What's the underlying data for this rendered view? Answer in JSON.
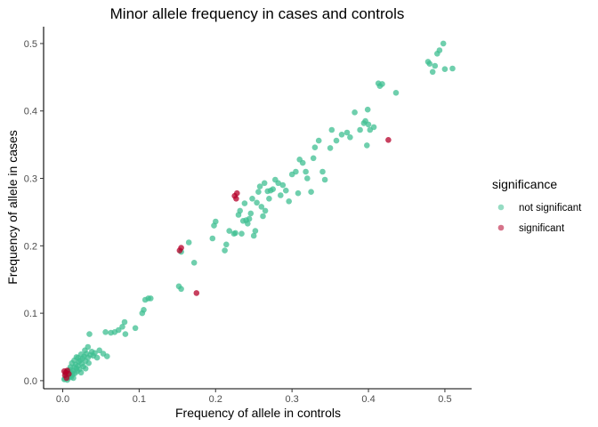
{
  "chart_data": {
    "type": "scatter",
    "title": "Minor allele frequency in cases and controls",
    "xlabel": "Frequency of allele in controls",
    "ylabel": "Frequency of allele in cases",
    "xlim": [
      -0.025,
      0.535
    ],
    "ylim": [
      -0.012,
      0.525
    ],
    "x_ticks": [
      0.0,
      0.1,
      0.2,
      0.3,
      0.4,
      0.5
    ],
    "x_tick_labels": [
      "0.0",
      "0.1",
      "0.2",
      "0.3",
      "0.4",
      "0.5"
    ],
    "y_ticks": [
      0.0,
      0.1,
      0.2,
      0.3,
      0.4,
      0.5
    ],
    "y_tick_labels": [
      "0.0",
      "0.1",
      "0.2",
      "0.3",
      "0.4",
      "0.5"
    ],
    "grid": false,
    "legend": {
      "title": "significance",
      "position": "right",
      "entries": [
        {
          "label": "not significant",
          "color": "#3fbf91"
        },
        {
          "label": "significant",
          "color": "#b5002a"
        }
      ]
    },
    "series": [
      {
        "name": "not significant",
        "color": "#3fbf91",
        "points": [
          [
            0.003,
            0.003
          ],
          [
            0.005,
            0.006
          ],
          [
            0.007,
            0.004
          ],
          [
            0.008,
            0.009
          ],
          [
            0.01,
            0.007
          ],
          [
            0.012,
            0.012
          ],
          [
            0.004,
            0.01
          ],
          [
            0.006,
            0.014
          ],
          [
            0.009,
            0.016
          ],
          [
            0.011,
            0.005
          ],
          [
            0.013,
            0.009
          ],
          [
            0.014,
            0.015
          ],
          [
            0.015,
            0.02
          ],
          [
            0.016,
            0.011
          ],
          [
            0.018,
            0.018
          ],
          [
            0.017,
            0.024
          ],
          [
            0.019,
            0.014
          ],
          [
            0.02,
            0.022
          ],
          [
            0.021,
            0.028
          ],
          [
            0.022,
            0.017
          ],
          [
            0.023,
            0.03
          ],
          [
            0.025,
            0.025
          ],
          [
            0.026,
            0.033
          ],
          [
            0.027,
            0.021
          ],
          [
            0.028,
            0.036
          ],
          [
            0.03,
            0.029
          ],
          [
            0.031,
            0.04
          ],
          [
            0.033,
            0.034
          ],
          [
            0.034,
            0.026
          ],
          [
            0.036,
            0.038
          ],
          [
            0.038,
            0.043
          ],
          [
            0.04,
            0.037
          ],
          [
            0.042,
            0.041
          ],
          [
            0.045,
            0.034
          ],
          [
            0.02,
            0.034
          ],
          [
            0.024,
            0.039
          ],
          [
            0.015,
            0.03
          ],
          [
            0.018,
            0.035
          ],
          [
            0.01,
            0.02
          ],
          [
            0.012,
            0.026
          ],
          [
            0.007,
            0.012
          ],
          [
            0.002,
            0.002
          ],
          [
            0.006,
            0.001
          ],
          [
            0.014,
            0.004
          ],
          [
            0.024,
            0.012
          ],
          [
            0.03,
            0.018
          ],
          [
            0.029,
            0.045
          ],
          [
            0.033,
            0.05
          ],
          [
            0.048,
            0.045
          ],
          [
            0.053,
            0.04
          ],
          [
            0.058,
            0.036
          ],
          [
            0.035,
            0.069
          ],
          [
            0.056,
            0.072
          ],
          [
            0.063,
            0.071
          ],
          [
            0.068,
            0.072
          ],
          [
            0.073,
            0.075
          ],
          [
            0.078,
            0.08
          ],
          [
            0.081,
            0.087
          ],
          [
            0.082,
            0.069
          ],
          [
            0.095,
            0.078
          ],
          [
            0.104,
            0.1
          ],
          [
            0.106,
            0.105
          ],
          [
            0.108,
            0.12
          ],
          [
            0.112,
            0.122
          ],
          [
            0.115,
            0.122
          ],
          [
            0.152,
            0.14
          ],
          [
            0.155,
            0.136
          ],
          [
            0.155,
            0.191
          ],
          [
            0.165,
            0.205
          ],
          [
            0.172,
            0.175
          ],
          [
            0.196,
            0.211
          ],
          [
            0.198,
            0.23
          ],
          [
            0.2,
            0.236
          ],
          [
            0.212,
            0.193
          ],
          [
            0.214,
            0.202
          ],
          [
            0.218,
            0.222
          ],
          [
            0.224,
            0.218
          ],
          [
            0.226,
            0.219
          ],
          [
            0.23,
            0.246
          ],
          [
            0.232,
            0.252
          ],
          [
            0.234,
            0.218
          ],
          [
            0.236,
            0.237
          ],
          [
            0.238,
            0.263
          ],
          [
            0.24,
            0.238
          ],
          [
            0.242,
            0.233
          ],
          [
            0.244,
            0.24
          ],
          [
            0.246,
            0.248
          ],
          [
            0.248,
            0.27
          ],
          [
            0.25,
            0.215
          ],
          [
            0.252,
            0.222
          ],
          [
            0.254,
            0.264
          ],
          [
            0.256,
            0.28
          ],
          [
            0.258,
            0.288
          ],
          [
            0.26,
            0.258
          ],
          [
            0.262,
            0.244
          ],
          [
            0.264,
            0.293
          ],
          [
            0.265,
            0.252
          ],
          [
            0.268,
            0.281
          ],
          [
            0.27,
            0.27
          ],
          [
            0.272,
            0.282
          ],
          [
            0.275,
            0.284
          ],
          [
            0.278,
            0.298
          ],
          [
            0.282,
            0.293
          ],
          [
            0.285,
            0.275
          ],
          [
            0.288,
            0.29
          ],
          [
            0.292,
            0.282
          ],
          [
            0.296,
            0.266
          ],
          [
            0.3,
            0.306
          ],
          [
            0.305,
            0.31
          ],
          [
            0.308,
            0.278
          ],
          [
            0.31,
            0.328
          ],
          [
            0.314,
            0.323
          ],
          [
            0.318,
            0.31
          ],
          [
            0.32,
            0.3
          ],
          [
            0.325,
            0.28
          ],
          [
            0.328,
            0.33
          ],
          [
            0.33,
            0.346
          ],
          [
            0.335,
            0.356
          ],
          [
            0.34,
            0.31
          ],
          [
            0.343,
            0.298
          ],
          [
            0.35,
            0.345
          ],
          [
            0.352,
            0.372
          ],
          [
            0.358,
            0.356
          ],
          [
            0.365,
            0.365
          ],
          [
            0.372,
            0.368
          ],
          [
            0.376,
            0.361
          ],
          [
            0.382,
            0.398
          ],
          [
            0.389,
            0.372
          ],
          [
            0.394,
            0.382
          ],
          [
            0.396,
            0.385
          ],
          [
            0.398,
            0.349
          ],
          [
            0.399,
            0.402
          ],
          [
            0.4,
            0.38
          ],
          [
            0.402,
            0.372
          ],
          [
            0.407,
            0.376
          ],
          [
            0.413,
            0.441
          ],
          [
            0.415,
            0.437
          ],
          [
            0.418,
            0.44
          ],
          [
            0.436,
            0.427
          ],
          [
            0.48,
            0.47
          ],
          [
            0.484,
            0.458
          ],
          [
            0.487,
            0.467
          ],
          [
            0.49,
            0.485
          ],
          [
            0.493,
            0.49
          ],
          [
            0.498,
            0.5
          ],
          [
            0.5,
            0.462
          ],
          [
            0.51,
            0.463
          ],
          [
            0.478,
            0.473
          ]
        ]
      },
      {
        "name": "significant",
        "color": "#b5002a",
        "points": [
          [
            0.003,
            0.008
          ],
          [
            0.004,
            0.012
          ],
          [
            0.006,
            0.015
          ],
          [
            0.008,
            0.01
          ],
          [
            0.005,
            0.004
          ],
          [
            0.002,
            0.014
          ],
          [
            0.153,
            0.193
          ],
          [
            0.155,
            0.197
          ],
          [
            0.175,
            0.13
          ],
          [
            0.225,
            0.274
          ],
          [
            0.228,
            0.278
          ],
          [
            0.227,
            0.27
          ],
          [
            0.426,
            0.357
          ]
        ]
      }
    ]
  }
}
